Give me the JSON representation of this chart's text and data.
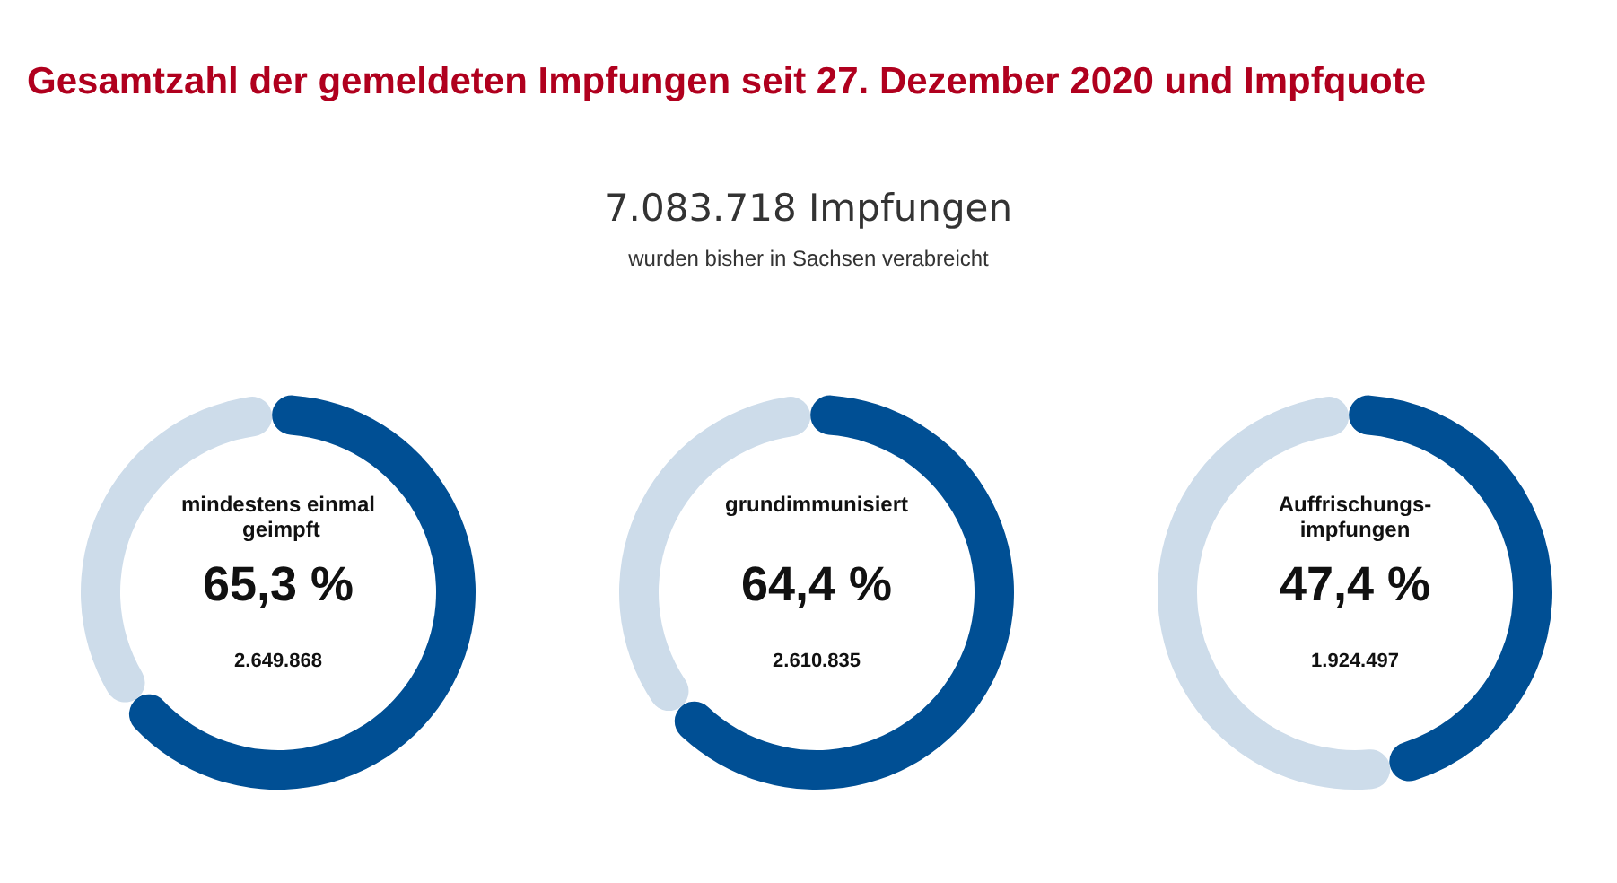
{
  "chart_data": [
    {
      "type": "other",
      "title": "Gesamtzahl der gemeldeten Impfungen seit 27. Dezember 2020 und Impfquote",
      "subtitle": "7.083.718 Impfungen",
      "annotations": [
        "wurden bisher in Sachsen verabreicht"
      ]
    },
    {
      "type": "donut",
      "title": "mindestens einmal geimpft",
      "categories": [
        null,
        null
      ],
      "values": [
        65.3,
        34.7
      ],
      "colors": [
        "#004f94",
        "#cddcea"
      ],
      "value_labels": [
        "65,3 %",
        null
      ],
      "annotations": [
        "2.649.868"
      ]
    },
    {
      "type": "donut",
      "title": "grundimmunisiert",
      "categories": [
        null,
        null
      ],
      "values": [
        64.4,
        35.6
      ],
      "colors": [
        "#004f94",
        "#cddcea"
      ],
      "value_labels": [
        "64,4 %",
        null
      ],
      "annotations": [
        "2.610.835"
      ]
    },
    {
      "type": "donut",
      "title": "Auffrischungs-impfungen",
      "categories": [
        null,
        null
      ],
      "values": [
        47.4,
        52.6
      ],
      "colors": [
        "#004f94",
        "#cddcea"
      ],
      "value_labels": [
        "47,4 %",
        null
      ],
      "annotations": [
        "1.924.497"
      ]
    }
  ]
}
